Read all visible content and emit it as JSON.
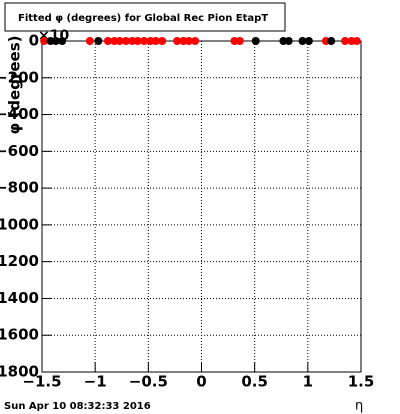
{
  "chart_data": {
    "type": "scatter",
    "title": "Fitted φ (degrees) for Global Rec Pion EtapT",
    "x_label": "η",
    "y_label": "φ (degrees)",
    "y_multiplier": "×10",
    "footer": "Sun Apr 10 08:32:33 2016",
    "xlim": [
      -1.5,
      1.5
    ],
    "ylim": [
      -1800,
      0
    ],
    "xticks": [
      {
        "value": -1.5,
        "label": "−1.5"
      },
      {
        "value": -1,
        "label": "−1"
      },
      {
        "value": -0.5,
        "label": "−0.5"
      },
      0,
      0.5,
      1,
      1.5
    ],
    "yticks": [
      0,
      {
        "value": -200,
        "label": "−200"
      },
      {
        "value": -400,
        "label": "−400"
      },
      {
        "value": -600,
        "label": "−600"
      },
      {
        "value": -800,
        "label": "−800"
      },
      {
        "value": -1000,
        "label": "−1000"
      },
      {
        "value": -1200,
        "label": "−1200"
      },
      {
        "value": -1400,
        "label": "−1400"
      },
      {
        "value": -1600,
        "label": "−1600"
      },
      {
        "value": -1800,
        "label": "−1800"
      }
    ],
    "grid": true,
    "series": [
      {
        "name": "red",
        "color": "#ff0000",
        "x": [
          -1.48,
          -1.05,
          -0.88,
          -0.82,
          -0.77,
          -0.71,
          -0.65,
          -0.6,
          -0.54,
          -0.48,
          -0.43,
          -0.37,
          -0.23,
          -0.17,
          -0.12,
          -0.06,
          0.31,
          0.36,
          1.17,
          1.35,
          1.41,
          1.46
        ],
        "values": [
          0,
          0,
          0,
          0,
          0,
          0,
          0,
          0,
          0,
          0,
          0,
          0,
          0,
          0,
          0,
          0,
          0,
          0,
          0,
          0,
          0,
          0
        ]
      },
      {
        "name": "black",
        "color": "#000000",
        "x": [
          -1.42,
          -1.37,
          -1.31,
          -0.97,
          0.51,
          0.77,
          0.82,
          0.95,
          1.01,
          1.22
        ],
        "values": [
          0,
          0,
          0,
          0,
          0,
          0,
          0,
          0,
          0,
          0
        ]
      }
    ]
  }
}
